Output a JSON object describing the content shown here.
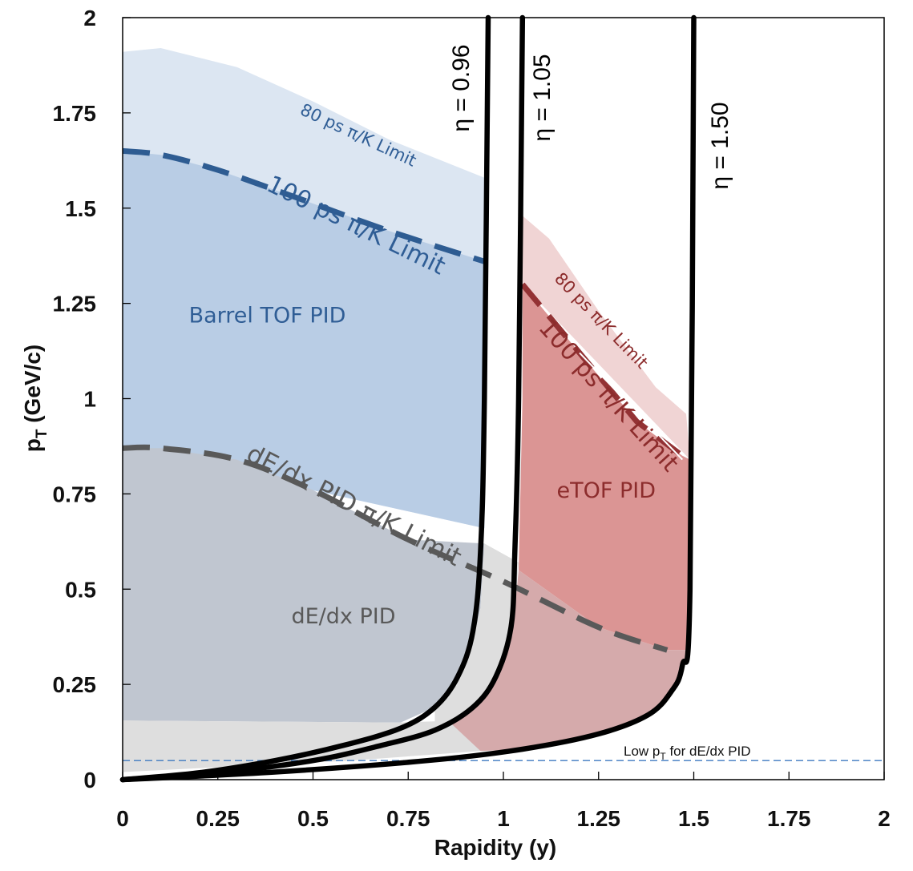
{
  "chart_data": {
    "type": "area",
    "title": "",
    "xlabel": "Rapidity (y)",
    "ylabel_main": "p",
    "ylabel_sub": "T",
    "ylabel_rest": " (GeV/c)",
    "xlim": [
      0,
      2
    ],
    "ylim": [
      0,
      2
    ],
    "xticks": [
      "0",
      "0.25",
      "0.5",
      "0.75",
      "1",
      "1.25",
      "1.5",
      "1.75",
      "2"
    ],
    "yticks": [
      "0",
      "0.25",
      "0.5",
      "0.75",
      "1",
      "1.25",
      "1.5",
      "1.75",
      "2"
    ],
    "colors": {
      "barrel_80": "#dce6f2",
      "barrel_100": "#b9cde5",
      "dedx": "#c0c6d0",
      "low_pt": "#dedede",
      "etof_80": "#f0d4d4",
      "etof_100": "#db9594",
      "etof_low": "#d5aaab",
      "blue_line": "#2e5c92",
      "red_line": "#933234",
      "gray_line": "#595959",
      "blue_text": "#2f5d95",
      "red_text": "#8c2c2c",
      "gray_text": "#595959"
    },
    "regions": [
      {
        "name": "Barrel TOF PID",
        "x": 0.38,
        "y": 1.2
      },
      {
        "name": "dE/dx PID",
        "x": 0.58,
        "y": 0.41
      },
      {
        "name": "eTOF PID",
        "x": 1.27,
        "y": 0.74
      }
    ],
    "limit_labels": {
      "barrel_80": "80 ps π/K Limit",
      "barrel_100": "100 ps π/K Limit",
      "etof_80": "80 ps π/K Limit",
      "etof_100": "100 ps π/K Limit",
      "dedx": "dE/dx PID π/K Limit"
    },
    "eta_labels": [
      "η = 0.96",
      "η = 1.05",
      "η = 1.50"
    ],
    "low_pt_note": {
      "main": "Low p",
      "sub": "T",
      "rest": " for dE/dx PID",
      "y": 0.05
    },
    "series": [
      {
        "name": "80 ps π/K Limit (barrel)",
        "x": [
          0,
          0.1,
          0.3,
          0.5,
          0.7,
          0.95
        ],
        "y": [
          1.91,
          1.92,
          1.87,
          1.78,
          1.68,
          1.58
        ]
      },
      {
        "name": "100 ps π/K Limit (barrel)",
        "x": [
          0,
          0.1,
          0.25,
          0.45,
          0.7,
          0.95
        ],
        "y": [
          1.65,
          1.64,
          1.6,
          1.53,
          1.44,
          1.36
        ]
      },
      {
        "name": "dE/dx PID π/K Limit",
        "x": [
          0,
          0.1,
          0.3,
          0.5,
          0.75,
          1.0,
          1.25,
          1.43
        ],
        "y": [
          0.87,
          0.87,
          0.84,
          0.76,
          0.63,
          0.52,
          0.4,
          0.34
        ]
      },
      {
        "name": "80 ps π/K Limit (eTOF)",
        "x": [
          1.05,
          1.12,
          1.25,
          1.4,
          1.48
        ],
        "y": [
          1.48,
          1.42,
          1.23,
          1.03,
          0.96
        ]
      },
      {
        "name": "100 ps π/K Limit (eTOF)",
        "x": [
          1.05,
          1.2,
          1.35,
          1.47
        ],
        "y": [
          1.3,
          1.12,
          0.94,
          0.85
        ]
      },
      {
        "name": "Low pT for dE/dx PID",
        "x": [
          0,
          2
        ],
        "y": [
          0.05,
          0.05
        ]
      },
      {
        "name": "η = 0.96",
        "x": [
          0,
          0.2,
          0.4,
          0.58,
          0.73,
          0.82,
          0.88,
          0.92,
          0.94,
          0.95,
          0.96
        ],
        "y": [
          0,
          0.018,
          0.05,
          0.09,
          0.135,
          0.19,
          0.27,
          0.39,
          0.6,
          1.0,
          2.0
        ]
      },
      {
        "name": "η = 1.05",
        "x": [
          0,
          0.25,
          0.5,
          0.68,
          0.82,
          0.92,
          0.98,
          1.02,
          1.03,
          1.04,
          1.05
        ],
        "y": [
          0,
          0.018,
          0.05,
          0.09,
          0.13,
          0.19,
          0.27,
          0.4,
          0.6,
          1.0,
          2.0
        ]
      },
      {
        "name": "η = 1.50",
        "x": [
          0,
          0.4,
          0.8,
          1.05,
          1.25,
          1.38,
          1.44,
          1.47,
          1.49,
          1.5
        ],
        "y": [
          0,
          0.02,
          0.05,
          0.08,
          0.12,
          0.17,
          0.23,
          0.3,
          0.5,
          2.0
        ]
      }
    ]
  }
}
